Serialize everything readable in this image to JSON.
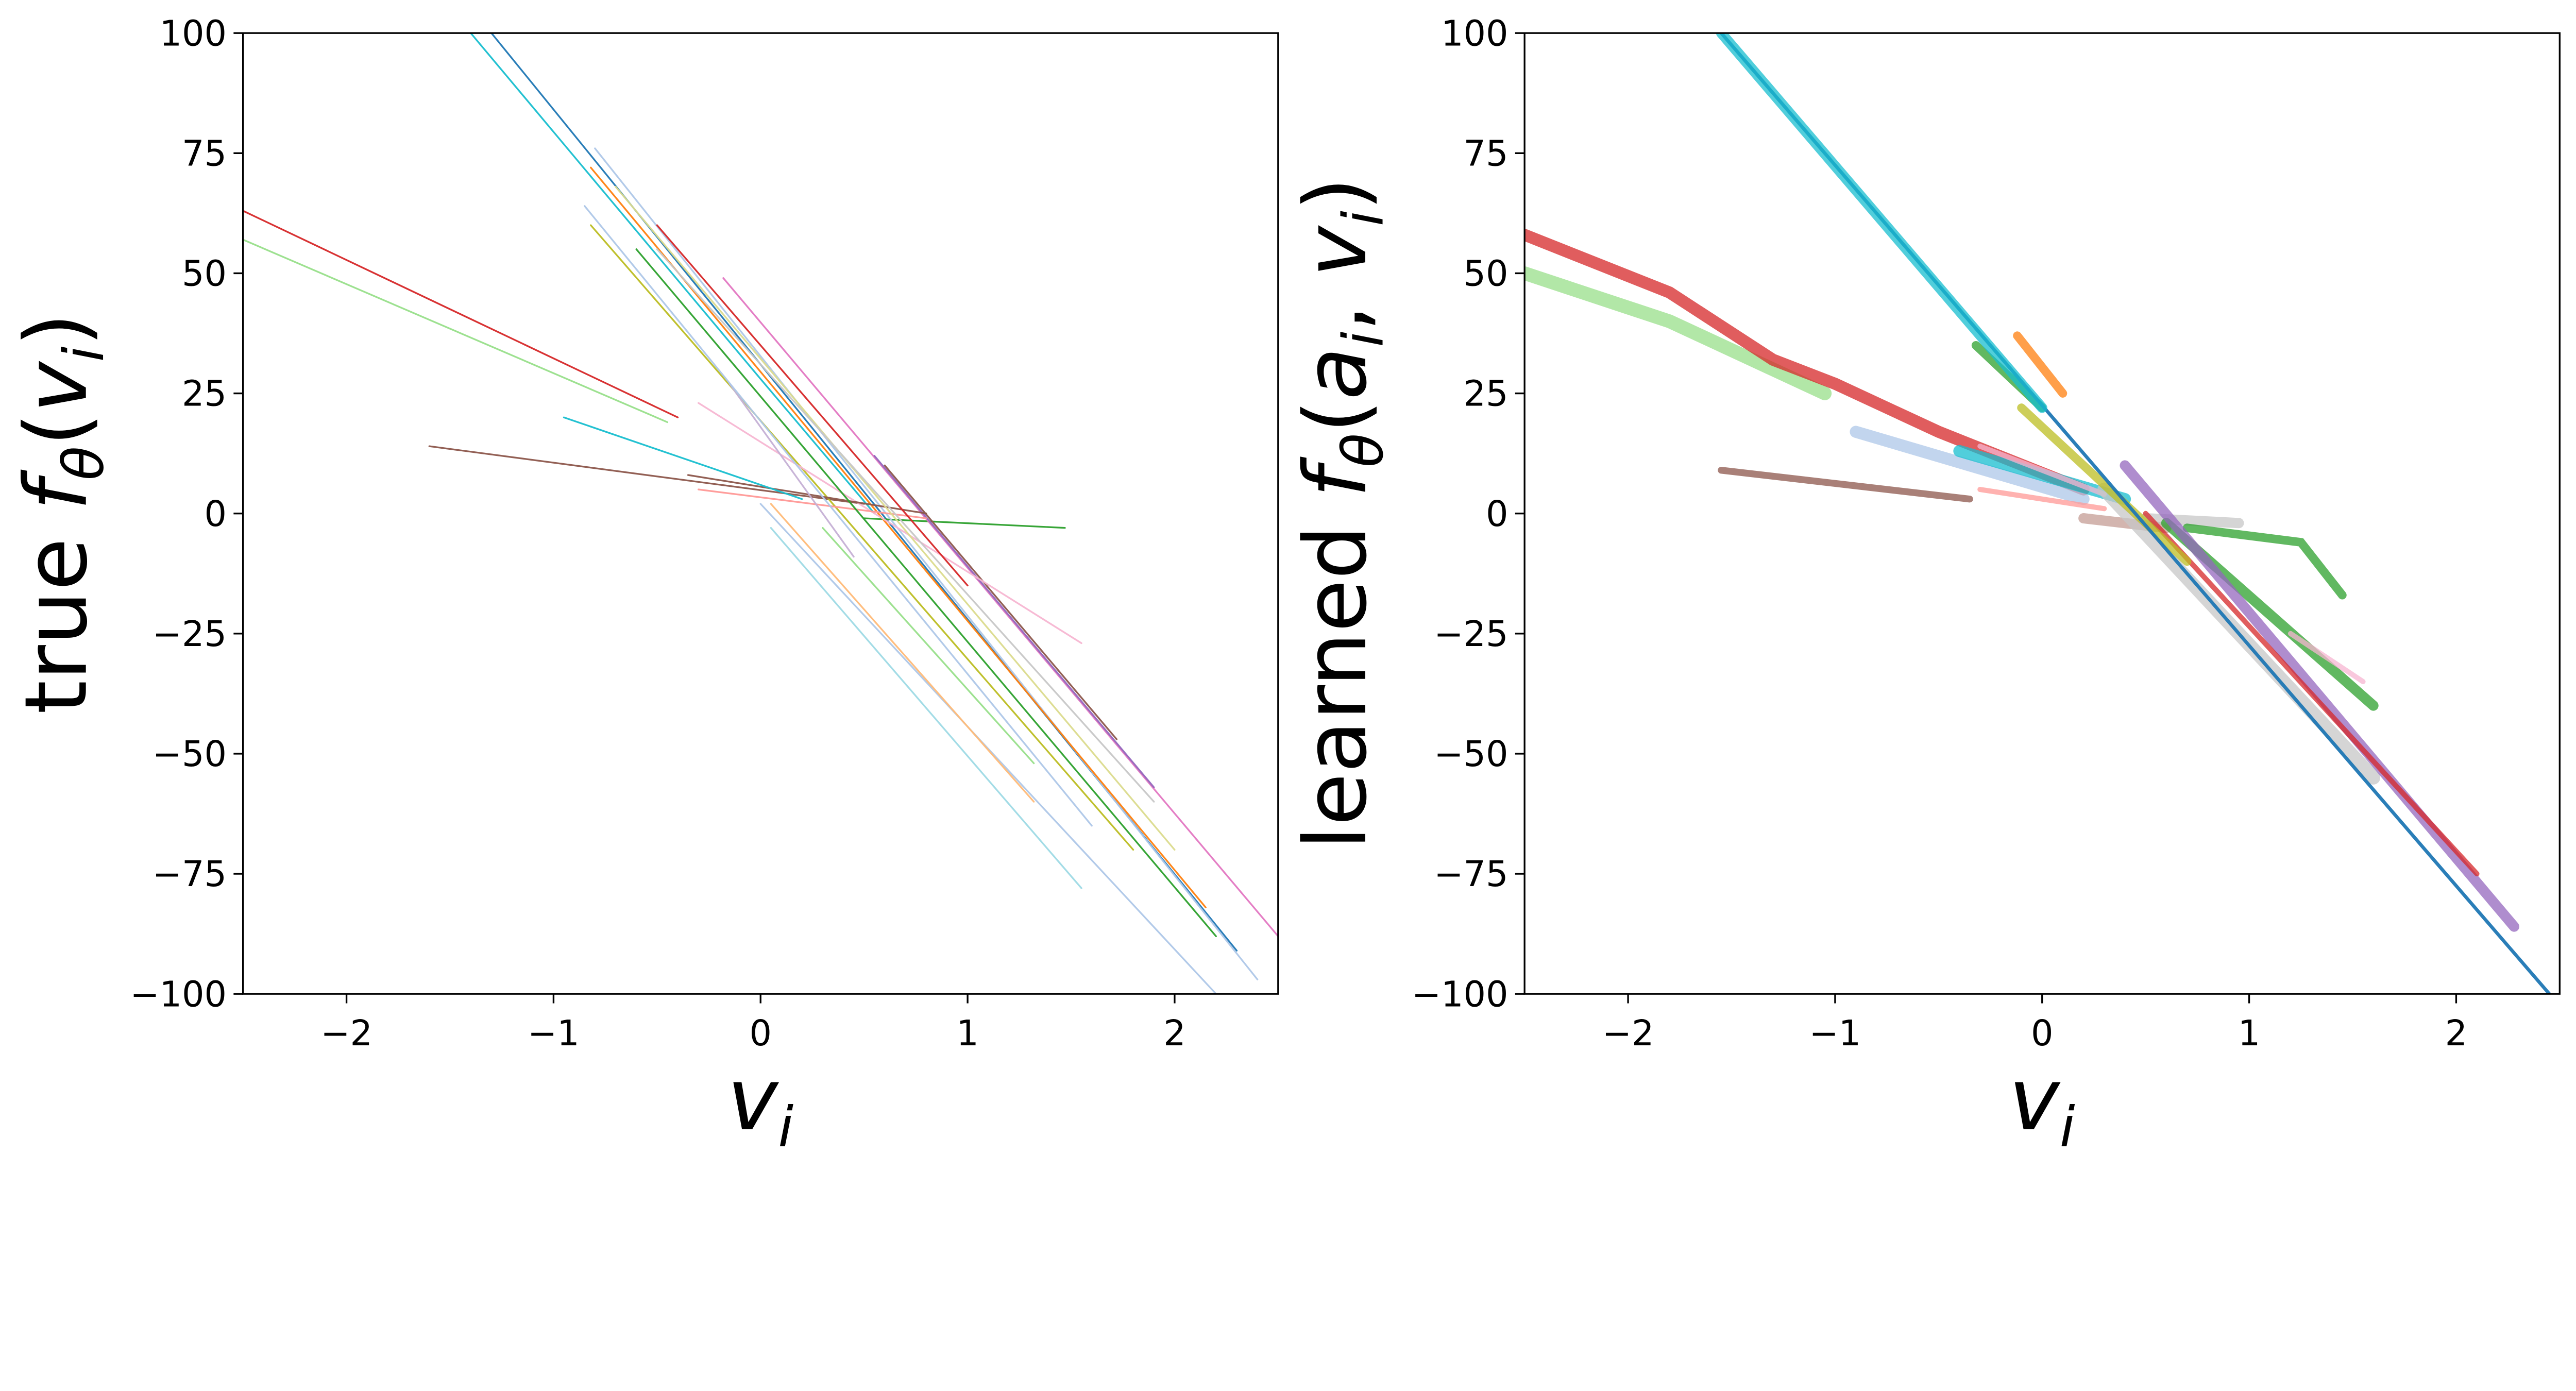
{
  "chart_data": [
    {
      "type": "line",
      "title": "",
      "xlabel_parts": [
        "v",
        "i"
      ],
      "ylabel_parts": [
        "true ",
        "f",
        "θ",
        "(",
        "v",
        "i",
        ")"
      ],
      "xlim": [
        -2.5,
        2.5
      ],
      "ylim": [
        -100,
        100
      ],
      "xticks": [
        -2,
        -1,
        0,
        1,
        2
      ],
      "xtick_labels": [
        "−2",
        "−1",
        "0",
        "1",
        "2"
      ],
      "yticks": [
        -100,
        -75,
        -50,
        -25,
        0,
        25,
        50,
        75,
        100
      ],
      "ytick_labels": [
        "−100",
        "−75",
        "−50",
        "−25",
        "0",
        "25",
        "50",
        "75",
        "100"
      ],
      "grid": false,
      "series": [
        {
          "color": "#1f77b4",
          "width": 1,
          "points": [
            [
              -1.3,
              100
            ],
            [
              2.3,
              -91
            ]
          ]
        },
        {
          "color": "#17becf",
          "width": 1,
          "points": [
            [
              -1.4,
              100
            ],
            [
              0.0,
              28
            ],
            [
              0.55,
              0
            ]
          ]
        },
        {
          "color": "#d62728",
          "width": 1,
          "points": [
            [
              -2.5,
              63
            ],
            [
              -0.4,
              20
            ]
          ]
        },
        {
          "color": "#98df8a",
          "width": 1,
          "points": [
            [
              -2.5,
              57
            ],
            [
              -0.45,
              19
            ]
          ]
        },
        {
          "color": "#8c564b",
          "width": 1,
          "points": [
            [
              -1.6,
              14
            ],
            [
              0.5,
              2
            ]
          ]
        },
        {
          "color": "#2ca02c",
          "width": 1,
          "points": [
            [
              0.5,
              -1
            ],
            [
              1.47,
              -3
            ]
          ]
        },
        {
          "color": "#e377c2",
          "width": 1,
          "points": [
            [
              -0.18,
              49
            ],
            [
              2.5,
              -88
            ]
          ]
        },
        {
          "color": "#aec7e8",
          "width": 1,
          "points": [
            [
              -0.8,
              76
            ],
            [
              2.4,
              -97
            ]
          ]
        },
        {
          "color": "#bcbd22",
          "width": 1,
          "points": [
            [
              -0.82,
              60
            ],
            [
              1.8,
              -70
            ]
          ]
        },
        {
          "color": "#ff7f0e",
          "width": 1,
          "points": [
            [
              -0.82,
              72
            ],
            [
              2.15,
              -82
            ]
          ]
        },
        {
          "color": "#9edae5",
          "width": 1,
          "points": [
            [
              0.05,
              -3
            ],
            [
              1.55,
              -78
            ]
          ]
        },
        {
          "color": "#aec7e8",
          "width": 1,
          "points": [
            [
              0.0,
              2
            ],
            [
              2.2,
              -100
            ]
          ]
        },
        {
          "color": "#9467bd",
          "width": 1,
          "points": [
            [
              0.55,
              12
            ],
            [
              1.9,
              -57
            ]
          ]
        },
        {
          "color": "#8c564b",
          "width": 1,
          "points": [
            [
              0.6,
              10
            ],
            [
              1.72,
              -47
            ]
          ]
        },
        {
          "color": "#f7b6d2",
          "width": 1,
          "points": [
            [
              -0.3,
              23
            ],
            [
              1.55,
              -27
            ]
          ]
        },
        {
          "color": "#98df8a",
          "width": 1,
          "points": [
            [
              0.3,
              -3
            ],
            [
              1.32,
              -52
            ]
          ]
        },
        {
          "color": "#ffbb78",
          "width": 1,
          "points": [
            [
              0.05,
              2
            ],
            [
              1.32,
              -60
            ]
          ]
        },
        {
          "color": "#ff9896",
          "width": 1,
          "points": [
            [
              -0.3,
              5
            ],
            [
              0.8,
              -1
            ]
          ]
        },
        {
          "color": "#8c564b",
          "width": 1,
          "points": [
            [
              -0.35,
              8
            ],
            [
              0.8,
              0
            ]
          ]
        },
        {
          "color": "#17becf",
          "width": 1,
          "points": [
            [
              -0.95,
              20
            ],
            [
              0.2,
              3
            ]
          ]
        },
        {
          "color": "#c5b0d5",
          "width": 1,
          "points": [
            [
              -0.15,
              27
            ],
            [
              0.45,
              -9
            ]
          ]
        },
        {
          "color": "#2ca02c",
          "width": 1,
          "points": [
            [
              -0.6,
              55
            ],
            [
              2.2,
              -88
            ]
          ]
        },
        {
          "color": "#dbdb8d",
          "width": 1,
          "points": [
            [
              -0.7,
              68
            ],
            [
              2.0,
              -70
            ]
          ]
        },
        {
          "color": "#c7c7c7",
          "width": 1,
          "points": [
            [
              -0.5,
              55
            ],
            [
              1.9,
              -60
            ]
          ]
        },
        {
          "color": "#d62728",
          "width": 1,
          "points": [
            [
              -0.5,
              60
            ],
            [
              1.0,
              -15
            ]
          ]
        },
        {
          "color": "#aec7e8",
          "width": 1,
          "points": [
            [
              -0.85,
              64
            ],
            [
              1.6,
              -65
            ]
          ]
        }
      ]
    },
    {
      "type": "line",
      "title": "",
      "xlabel_parts": [
        "v",
        "i"
      ],
      "ylabel_parts": [
        "learned ",
        "f",
        "θ",
        "(",
        "a",
        "i",
        ", ",
        "v",
        "i",
        ")"
      ],
      "xlim": [
        -2.5,
        2.5
      ],
      "ylim": [
        -100,
        100
      ],
      "xticks": [
        -2,
        -1,
        0,
        1,
        2
      ],
      "xtick_labels": [
        "−2",
        "−1",
        "0",
        "1",
        "2"
      ],
      "yticks": [
        -100,
        -75,
        -50,
        -25,
        0,
        25,
        50,
        75,
        100
      ],
      "ytick_labels": [
        "−100",
        "−75",
        "−50",
        "−25",
        "0",
        "25",
        "50",
        "75",
        "100"
      ],
      "grid": false,
      "series": [
        {
          "color": "#98df8a",
          "width": 8,
          "points": [
            [
              -2.5,
              50
            ],
            [
              -1.8,
              40
            ],
            [
              -1.05,
              25
            ]
          ]
        },
        {
          "color": "#d62728",
          "width": 7,
          "points": [
            [
              -2.5,
              58
            ],
            [
              -1.8,
              46
            ],
            [
              -1.3,
              32
            ],
            [
              -1.0,
              27
            ],
            [
              -0.5,
              17
            ],
            [
              0.2,
              5
            ]
          ]
        },
        {
          "color": "#8c564b",
          "width": 4,
          "points": [
            [
              -1.55,
              9
            ],
            [
              -0.35,
              3
            ]
          ]
        },
        {
          "color": "#aec7e8",
          "width": 7,
          "points": [
            [
              -0.9,
              17
            ],
            [
              0.2,
              3
            ]
          ]
        },
        {
          "color": "#17becf",
          "width": 7,
          "points": [
            [
              -0.4,
              13
            ],
            [
              0.4,
              3
            ]
          ]
        },
        {
          "color": "#f7b6d2",
          "width": 3,
          "points": [
            [
              -0.3,
              14
            ],
            [
              0.3,
              4
            ]
          ]
        },
        {
          "color": "#2ca02c",
          "width": 5,
          "points": [
            [
              -0.32,
              35
            ],
            [
              0.0,
              22
            ]
          ]
        },
        {
          "color": "#ff7f0e",
          "width": 5,
          "points": [
            [
              -0.12,
              37
            ],
            [
              0.1,
              25
            ]
          ]
        },
        {
          "color": "#c49c94",
          "width": 6,
          "points": [
            [
              0.2,
              -1
            ],
            [
              0.6,
              -3
            ]
          ]
        },
        {
          "color": "#c7c7c7",
          "width": 6,
          "points": [
            [
              0.5,
              -1
            ],
            [
              0.95,
              -2
            ]
          ]
        },
        {
          "color": "#2ca02c",
          "width": 5,
          "points": [
            [
              0.7,
              -3
            ],
            [
              1.25,
              -6
            ],
            [
              1.45,
              -17
            ]
          ]
        },
        {
          "color": "#2ca02c",
          "width": 6,
          "points": [
            [
              0.6,
              -2
            ],
            [
              1.6,
              -40
            ]
          ]
        },
        {
          "color": "#f7b6d2",
          "width": 3,
          "points": [
            [
              1.2,
              -25
            ],
            [
              1.55,
              -35
            ]
          ]
        },
        {
          "color": "#c7c7c7",
          "width": 8,
          "points": [
            [
              0.3,
              5
            ],
            [
              1.6,
              -55
            ]
          ]
        },
        {
          "color": "#9467bd",
          "width": 6,
          "points": [
            [
              0.4,
              10
            ],
            [
              2.28,
              -86
            ]
          ]
        },
        {
          "color": "#d62728",
          "width": 3,
          "points": [
            [
              0.5,
              0
            ],
            [
              2.1,
              -75
            ]
          ]
        },
        {
          "color": "#bcbd22",
          "width": 5,
          "points": [
            [
              -0.1,
              22
            ],
            [
              0.7,
              -10
            ]
          ]
        },
        {
          "color": "#ff9896",
          "width": 3,
          "points": [
            [
              -0.3,
              5
            ],
            [
              0.3,
              1
            ]
          ]
        },
        {
          "color": "#1f77b4",
          "width": 2,
          "points": [
            [
              -1.55,
              100
            ],
            [
              2.45,
              -100
            ]
          ]
        },
        {
          "color": "#17becf",
          "width": 6,
          "points": [
            [
              -1.55,
              100
            ],
            [
              0.0,
              22
            ]
          ]
        }
      ]
    }
  ]
}
